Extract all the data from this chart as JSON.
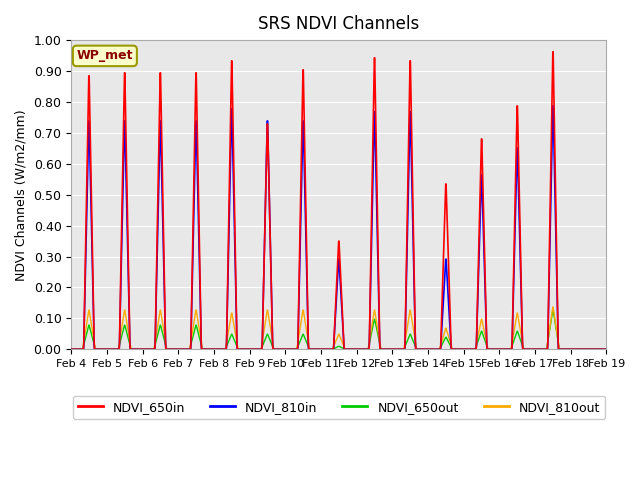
{
  "title": "SRS NDVI Channels",
  "ylabel": "NDVI Channels (W/m2/mm)",
  "xlabel": "",
  "ylim": [
    0.0,
    1.0
  ],
  "yticks": [
    0.0,
    0.1,
    0.2,
    0.3,
    0.4,
    0.5,
    0.6,
    0.7,
    0.8,
    0.9,
    1.0
  ],
  "bg_color": "#e8e8e8",
  "legend_label": "WP_met",
  "legend_entries": [
    "NDVI_650in",
    "NDVI_810in",
    "NDVI_650out",
    "NDVI_810out"
  ],
  "legend_colors": [
    "#ff0000",
    "#0000ff",
    "#00cc00",
    "#ffaa00"
  ],
  "date_labels": [
    "Feb 4",
    "Feb 5",
    "Feb 6",
    "Feb 7",
    "Feb 8",
    "Feb 9",
    "Feb 10",
    "Feb 11",
    "Feb 12",
    "Feb 13",
    "Feb 14",
    "Feb 15",
    "Feb 16",
    "Feb 17",
    "Feb 18",
    "Feb 19"
  ],
  "daily_peaks_650in": [
    0.91,
    0.92,
    0.92,
    0.92,
    0.96,
    0.75,
    0.93,
    0.36,
    0.97,
    0.96,
    0.55,
    0.7,
    0.81,
    0.99,
    0.0
  ],
  "daily_peaks_810in": [
    0.76,
    0.76,
    0.76,
    0.76,
    0.8,
    0.76,
    0.76,
    0.3,
    0.79,
    0.79,
    0.3,
    0.58,
    0.67,
    0.81,
    0.0
  ],
  "daily_peaks_650out": [
    0.08,
    0.08,
    0.08,
    0.08,
    0.05,
    0.05,
    0.05,
    0.01,
    0.1,
    0.05,
    0.04,
    0.06,
    0.06,
    0.13,
    0.0
  ],
  "daily_peaks_810out": [
    0.13,
    0.13,
    0.13,
    0.13,
    0.12,
    0.13,
    0.13,
    0.05,
    0.13,
    0.13,
    0.07,
    0.1,
    0.12,
    0.14,
    0.0
  ],
  "num_days": 15,
  "pts_per_day": 120
}
